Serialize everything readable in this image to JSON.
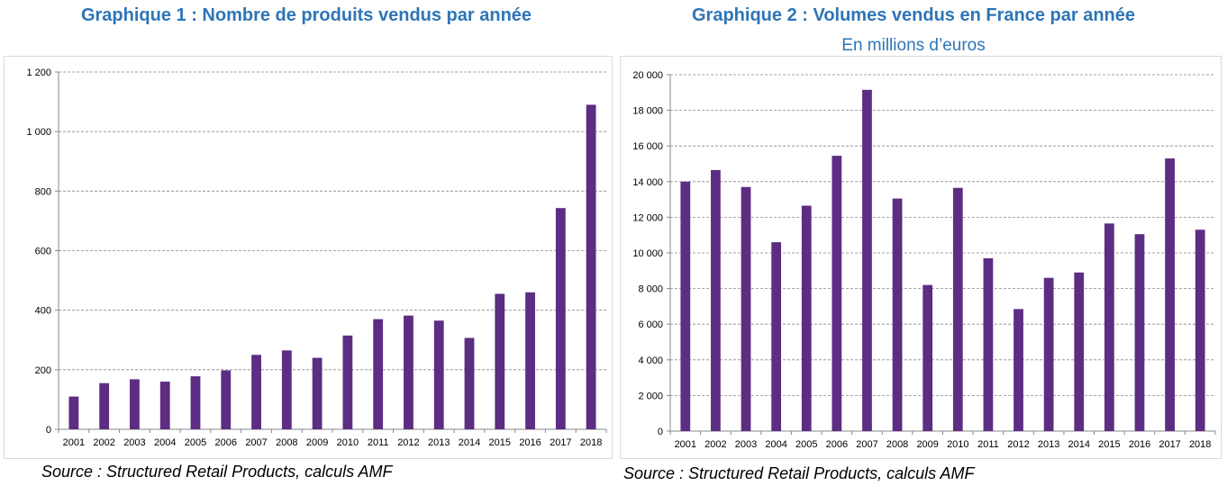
{
  "chart_data": [
    {
      "type": "bar",
      "title": "Graphique 1 : Nombre de produits vendus par année",
      "subtitle": "",
      "categories": [
        "2001",
        "2002",
        "2003",
        "2004",
        "2005",
        "2006",
        "2007",
        "2008",
        "2009",
        "2010",
        "2011",
        "2012",
        "2013",
        "2014",
        "2015",
        "2016",
        "2017",
        "2018"
      ],
      "values": [
        110,
        155,
        168,
        160,
        178,
        198,
        250,
        265,
        240,
        315,
        370,
        382,
        365,
        307,
        455,
        460,
        743,
        1090
      ],
      "ylim": [
        0,
        1200
      ],
      "yticks": [
        0,
        200,
        400,
        600,
        800,
        1000,
        1200
      ],
      "ytick_labels": [
        "0",
        "200",
        "400",
        "600",
        "800",
        "1 000",
        "1 200"
      ],
      "grid": true,
      "bar_color": "#5c2d82",
      "source": "Source : Structured Retail Products, calculs AMF"
    },
    {
      "type": "bar",
      "title": "Graphique 2 : Volumes vendus en France par année",
      "subtitle": "En millions d’euros",
      "categories": [
        "2001",
        "2002",
        "2003",
        "2004",
        "2005",
        "2006",
        "2007",
        "2008",
        "2009",
        "2010",
        "2011",
        "2012",
        "2013",
        "2014",
        "2015",
        "2016",
        "2017",
        "2018"
      ],
      "values": [
        14000,
        14650,
        13700,
        10600,
        12650,
        15450,
        19150,
        13050,
        8200,
        13650,
        9700,
        6850,
        8600,
        8900,
        11650,
        11050,
        15300,
        11300
      ],
      "ylim": [
        0,
        20000
      ],
      "yticks": [
        0,
        2000,
        4000,
        6000,
        8000,
        10000,
        12000,
        14000,
        16000,
        18000,
        20000
      ],
      "ytick_labels": [
        "0",
        "2 000",
        "4 000",
        "6 000",
        "8 000",
        "10 000",
        "12 000",
        "14 000",
        "16 000",
        "18 000",
        "20 000"
      ],
      "grid": true,
      "bar_color": "#5c2d82",
      "source": "Source : Structured Retail Products, calculs AMF"
    }
  ]
}
